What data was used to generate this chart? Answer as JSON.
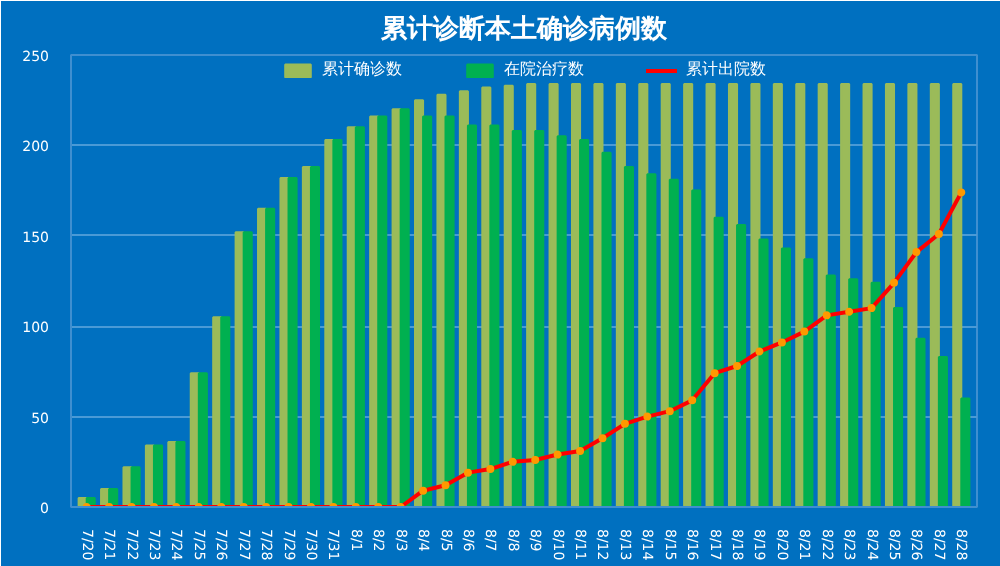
{
  "chart_data": {
    "type": "bar",
    "title": "累计诊断本土确诊病例数",
    "categories": [
      "7/20",
      "7/21",
      "7/22",
      "7/23",
      "7/24",
      "7/25",
      "7/26",
      "7/27",
      "7/28",
      "7/29",
      "7/30",
      "7/31",
      "8/1",
      "8/2",
      "8/3",
      "8/4",
      "8/5",
      "8/6",
      "8/7",
      "8/8",
      "8/9",
      "8/10",
      "8/11",
      "8/12",
      "8/13",
      "8/14",
      "8/15",
      "8/16",
      "8/17",
      "8/18",
      "8/19",
      "8/20",
      "8/21",
      "8/22",
      "8/23",
      "8/24",
      "8/25",
      "8/26",
      "8/27",
      "8/28"
    ],
    "series": [
      {
        "name": "累计确诊数",
        "color": "#9bbb59",
        "values": [
          5,
          10,
          22,
          34,
          36,
          74,
          105,
          152,
          165,
          182,
          188,
          203,
          210,
          216,
          220,
          225,
          228,
          230,
          232,
          233,
          234,
          234,
          234,
          234,
          234,
          234,
          234,
          234,
          234,
          234,
          234,
          234,
          234,
          234,
          234,
          234,
          234,
          234,
          234,
          234
        ]
      },
      {
        "name": "在院治疗数",
        "color": "#00b050",
        "values": [
          5,
          10,
          22,
          34,
          36,
          74,
          105,
          152,
          165,
          182,
          188,
          203,
          210,
          216,
          220,
          216,
          216,
          211,
          211,
          208,
          208,
          205,
          203,
          196,
          188,
          184,
          181,
          175,
          160,
          156,
          148,
          143,
          137,
          128,
          126,
          124,
          110,
          93,
          83,
          60
        ]
      },
      {
        "name": "累计出院数",
        "color": "#ff0000",
        "type": "line",
        "marker": "circle",
        "values": [
          0,
          0,
          0,
          0,
          0,
          0,
          0,
          0,
          0,
          0,
          0,
          0,
          0,
          0,
          0,
          9,
          12,
          19,
          21,
          25,
          26,
          29,
          31,
          38,
          46,
          50,
          53,
          59,
          74,
          78,
          86,
          91,
          97,
          106,
          108,
          110,
          124,
          141,
          151,
          174
        ]
      }
    ],
    "ylim": [
      0,
      250
    ],
    "yticks": [
      0,
      50,
      100,
      150,
      200,
      250
    ],
    "grid": "y",
    "legend": "top"
  }
}
